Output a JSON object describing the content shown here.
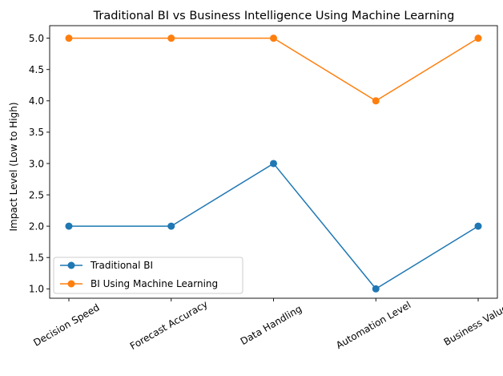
{
  "chart_data": {
    "type": "line",
    "title": "Traditional BI vs Business Intelligence Using Machine Learning",
    "xlabel": "",
    "ylabel": "Impact Level (Low to High)",
    "categories": [
      "Decision Speed",
      "Forecast Accuracy",
      "Data Handling",
      "Automation Level",
      "Business Value"
    ],
    "ylim": [
      0.85,
      5.2
    ],
    "yticks": [
      1.0,
      1.5,
      2.0,
      2.5,
      3.0,
      3.5,
      4.0,
      4.5,
      5.0
    ],
    "ytick_labels": [
      "1.0",
      "1.5",
      "2.0",
      "2.5",
      "3.0",
      "3.5",
      "4.0",
      "4.5",
      "5.0"
    ],
    "grid": false,
    "legend_position": "lower-left",
    "series": [
      {
        "name": "Traditional BI",
        "color": "#1f77b4",
        "marker": "circle",
        "values": [
          2,
          2,
          3,
          1,
          2
        ]
      },
      {
        "name": "BI Using Machine Learning",
        "color": "#ff7f0e",
        "marker": "circle",
        "values": [
          5,
          5,
          5,
          4,
          5
        ]
      }
    ]
  }
}
